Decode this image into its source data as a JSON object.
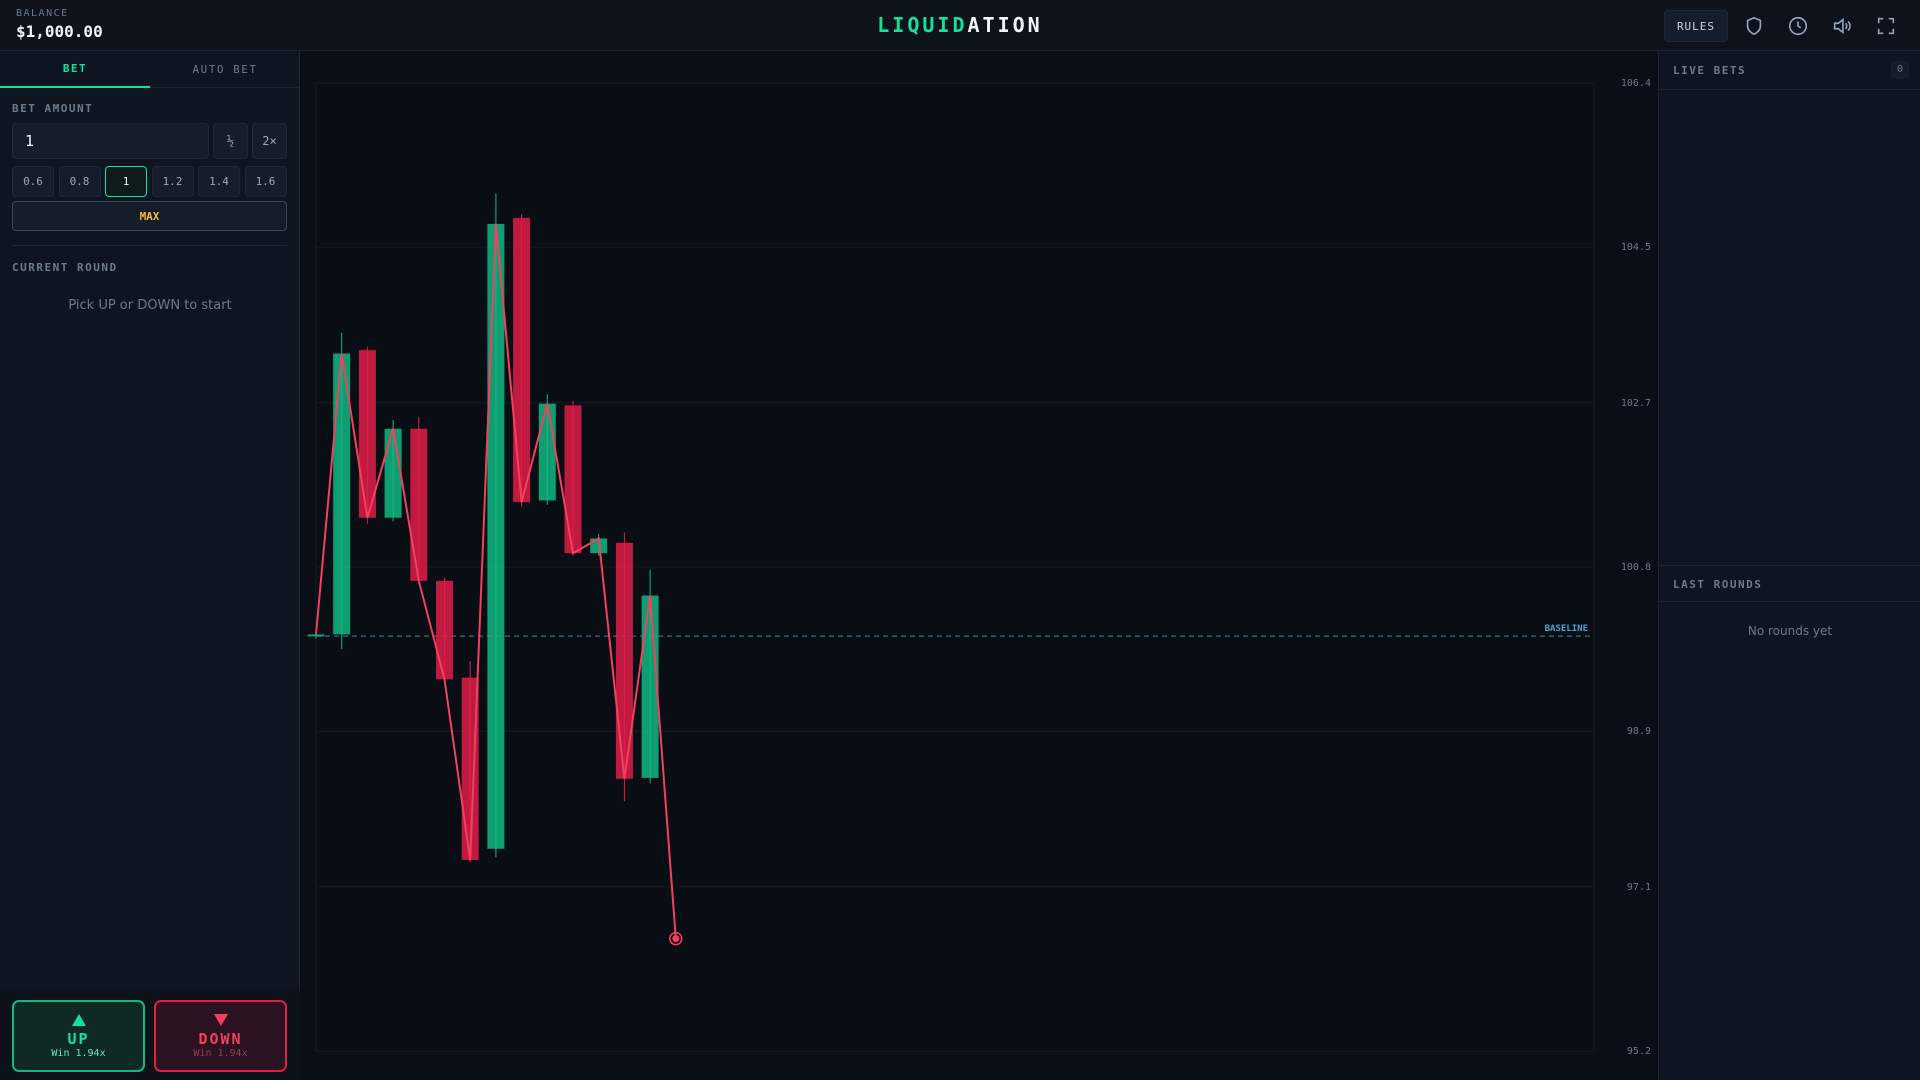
{
  "header": {
    "balance_label": "BALANCE",
    "balance": "$1,000.00",
    "title_accent": "LIQUID",
    "title_rest": "ATION",
    "rules": "RULES"
  },
  "bet_panel": {
    "tabs": [
      "BET",
      "AUTO BET"
    ],
    "bet_amount_label": "BET AMOUNT",
    "bet_amount": "1",
    "half": "½",
    "double": "2×",
    "presets": [
      "0.6",
      "0.8",
      "1",
      "1.2",
      "1.4",
      "1.6"
    ],
    "max": "MAX",
    "current_round_label": "CURRENT ROUND",
    "current_round_hint": "Pick UP or DOWN to start",
    "up": {
      "label": "UP",
      "win": "Win 1.94x"
    },
    "down": {
      "label": "DOWN",
      "win": "Win 1.94x"
    }
  },
  "chart_data": {
    "type": "candlestick",
    "open": [
      100,
      100.02,
      103.31,
      101.37,
      102.4,
      100.64,
      99.52,
      97.54,
      104.84,
      101.57,
      102.67,
      100.96,
      101.08,
      98.36
    ],
    "high": [
      100.05,
      103.51,
      103.35,
      102.5,
      102.54,
      100.68,
      99.71,
      105.12,
      104.88,
      102.8,
      102.72,
      101.18,
      101.2,
      100.77
    ],
    "low": [
      99.97,
      99.85,
      101.3,
      101.33,
      100.6,
      99.45,
      97.38,
      97.44,
      101.5,
      101.52,
      100.93,
      100.93,
      98.09,
      98.3
    ],
    "close": [
      100.02,
      103.27,
      101.37,
      102.4,
      100.64,
      99.5,
      97.41,
      104.77,
      101.55,
      102.69,
      100.96,
      101.13,
      98.35,
      100.47
    ],
    "current": 96.5,
    "baseline": 100,
    "baseline_label": "BASELINE",
    "ylim": [
      95.2,
      106.4
    ],
    "yticks": [
      95.2,
      97.1,
      98.9,
      100.8,
      102.7,
      104.5,
      106.4
    ],
    "grid": true,
    "up_color": "#10b981",
    "down_color": "#e11d48",
    "line_color": "#f43f5e"
  },
  "live_bets": {
    "title": "LIVE BETS",
    "count": "0"
  },
  "last_rounds": {
    "title": "LAST ROUNDS",
    "empty": "No rounds yet"
  }
}
